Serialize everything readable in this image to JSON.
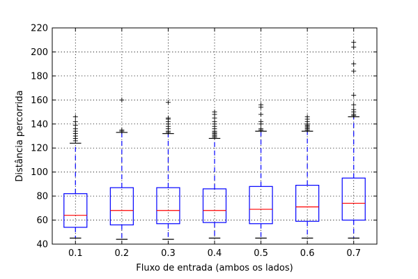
{
  "chart_data": {
    "type": "box",
    "xlabel": "Fluxo de entrada (ambos os lados)",
    "ylabel": "Distância percorrida",
    "ylim": [
      40,
      220
    ],
    "yticks": [
      40,
      60,
      80,
      100,
      120,
      140,
      160,
      180,
      200,
      220
    ],
    "grid": true,
    "categories": [
      "0.1",
      "0.2",
      "0.3",
      "0.4",
      "0.5",
      "0.6",
      "0.7"
    ],
    "boxes": [
      {
        "whisker_low": 45,
        "q1": 54,
        "median": 64,
        "q3": 82,
        "whisker_high": 124,
        "outliers": [
          126,
          128,
          130,
          132,
          134,
          136,
          139,
          142,
          146
        ]
      },
      {
        "whisker_low": 44,
        "q1": 56,
        "median": 68,
        "q3": 87,
        "whisker_high": 133,
        "outliers": [
          134,
          135,
          160
        ]
      },
      {
        "whisker_low": 44,
        "q1": 57,
        "median": 68,
        "q3": 87,
        "whisker_high": 132,
        "outliers": [
          133,
          134,
          136,
          138,
          140,
          142,
          144,
          145,
          158
        ]
      },
      {
        "whisker_low": 45,
        "q1": 58,
        "median": 68,
        "q3": 86,
        "whisker_high": 128,
        "outliers": [
          129,
          130,
          131,
          132,
          133,
          134,
          136,
          138,
          140,
          142,
          145,
          148,
          150
        ]
      },
      {
        "whisker_low": 45,
        "q1": 57,
        "median": 69,
        "q3": 88,
        "whisker_high": 134,
        "outliers": [
          135,
          136,
          140,
          142,
          148,
          154,
          156
        ]
      },
      {
        "whisker_low": 45,
        "q1": 59,
        "median": 71,
        "q3": 89,
        "whisker_high": 134,
        "outliers": [
          135,
          136,
          137,
          138,
          139,
          140,
          142,
          144,
          146
        ]
      },
      {
        "whisker_low": 45,
        "q1": 60,
        "median": 74,
        "q3": 95,
        "whisker_high": 146,
        "outliers": [
          147,
          148,
          150,
          152,
          156,
          164,
          184,
          190,
          204,
          208
        ]
      }
    ],
    "colors": {
      "box": "#0000ff",
      "median": "#ff0000",
      "whisker": "#0000ff",
      "cap": "#000000",
      "outlier": "#000000"
    }
  }
}
